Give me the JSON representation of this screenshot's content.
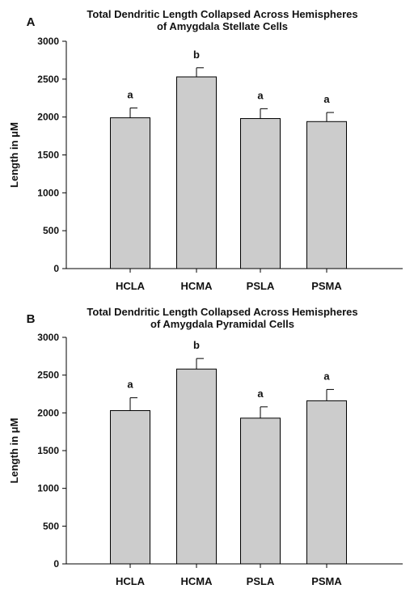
{
  "chart_data": [
    {
      "type": "bar",
      "panel_label": "A",
      "title_lines": [
        "Total Dendritic Length Collapsed Across Hemispheres",
        "of Amygdala Stellate Cells"
      ],
      "ylabel": "Length in μM",
      "xlabel": "",
      "categories": [
        "HCLA",
        "HCMA",
        "PSLA",
        "PSMA"
      ],
      "values": [
        1990,
        2530,
        1980,
        1940
      ],
      "errors": [
        130,
        120,
        130,
        120
      ],
      "significance": [
        "a",
        "b",
        "a",
        "a"
      ],
      "ylim": [
        0,
        3000
      ],
      "yticks": [
        0,
        500,
        1000,
        1500,
        2000,
        2500,
        3000
      ],
      "bar_color": "#cccccc",
      "grid": false
    },
    {
      "type": "bar",
      "panel_label": "B",
      "title_lines": [
        "Total Dendritic Length Collapsed Across Hemispheres",
        "of Amygdala Pyramidal Cells"
      ],
      "ylabel": "Length in μM",
      "xlabel": "",
      "categories": [
        "HCLA",
        "HCMA",
        "PSLA",
        "PSMA"
      ],
      "values": [
        2030,
        2580,
        1930,
        2160
      ],
      "errors": [
        170,
        140,
        150,
        150
      ],
      "significance": [
        "a",
        "b",
        "a",
        "a"
      ],
      "ylim": [
        0,
        3000
      ],
      "yticks": [
        0,
        500,
        1000,
        1500,
        2000,
        2500,
        3000
      ],
      "bar_color": "#cccccc",
      "grid": false
    }
  ]
}
